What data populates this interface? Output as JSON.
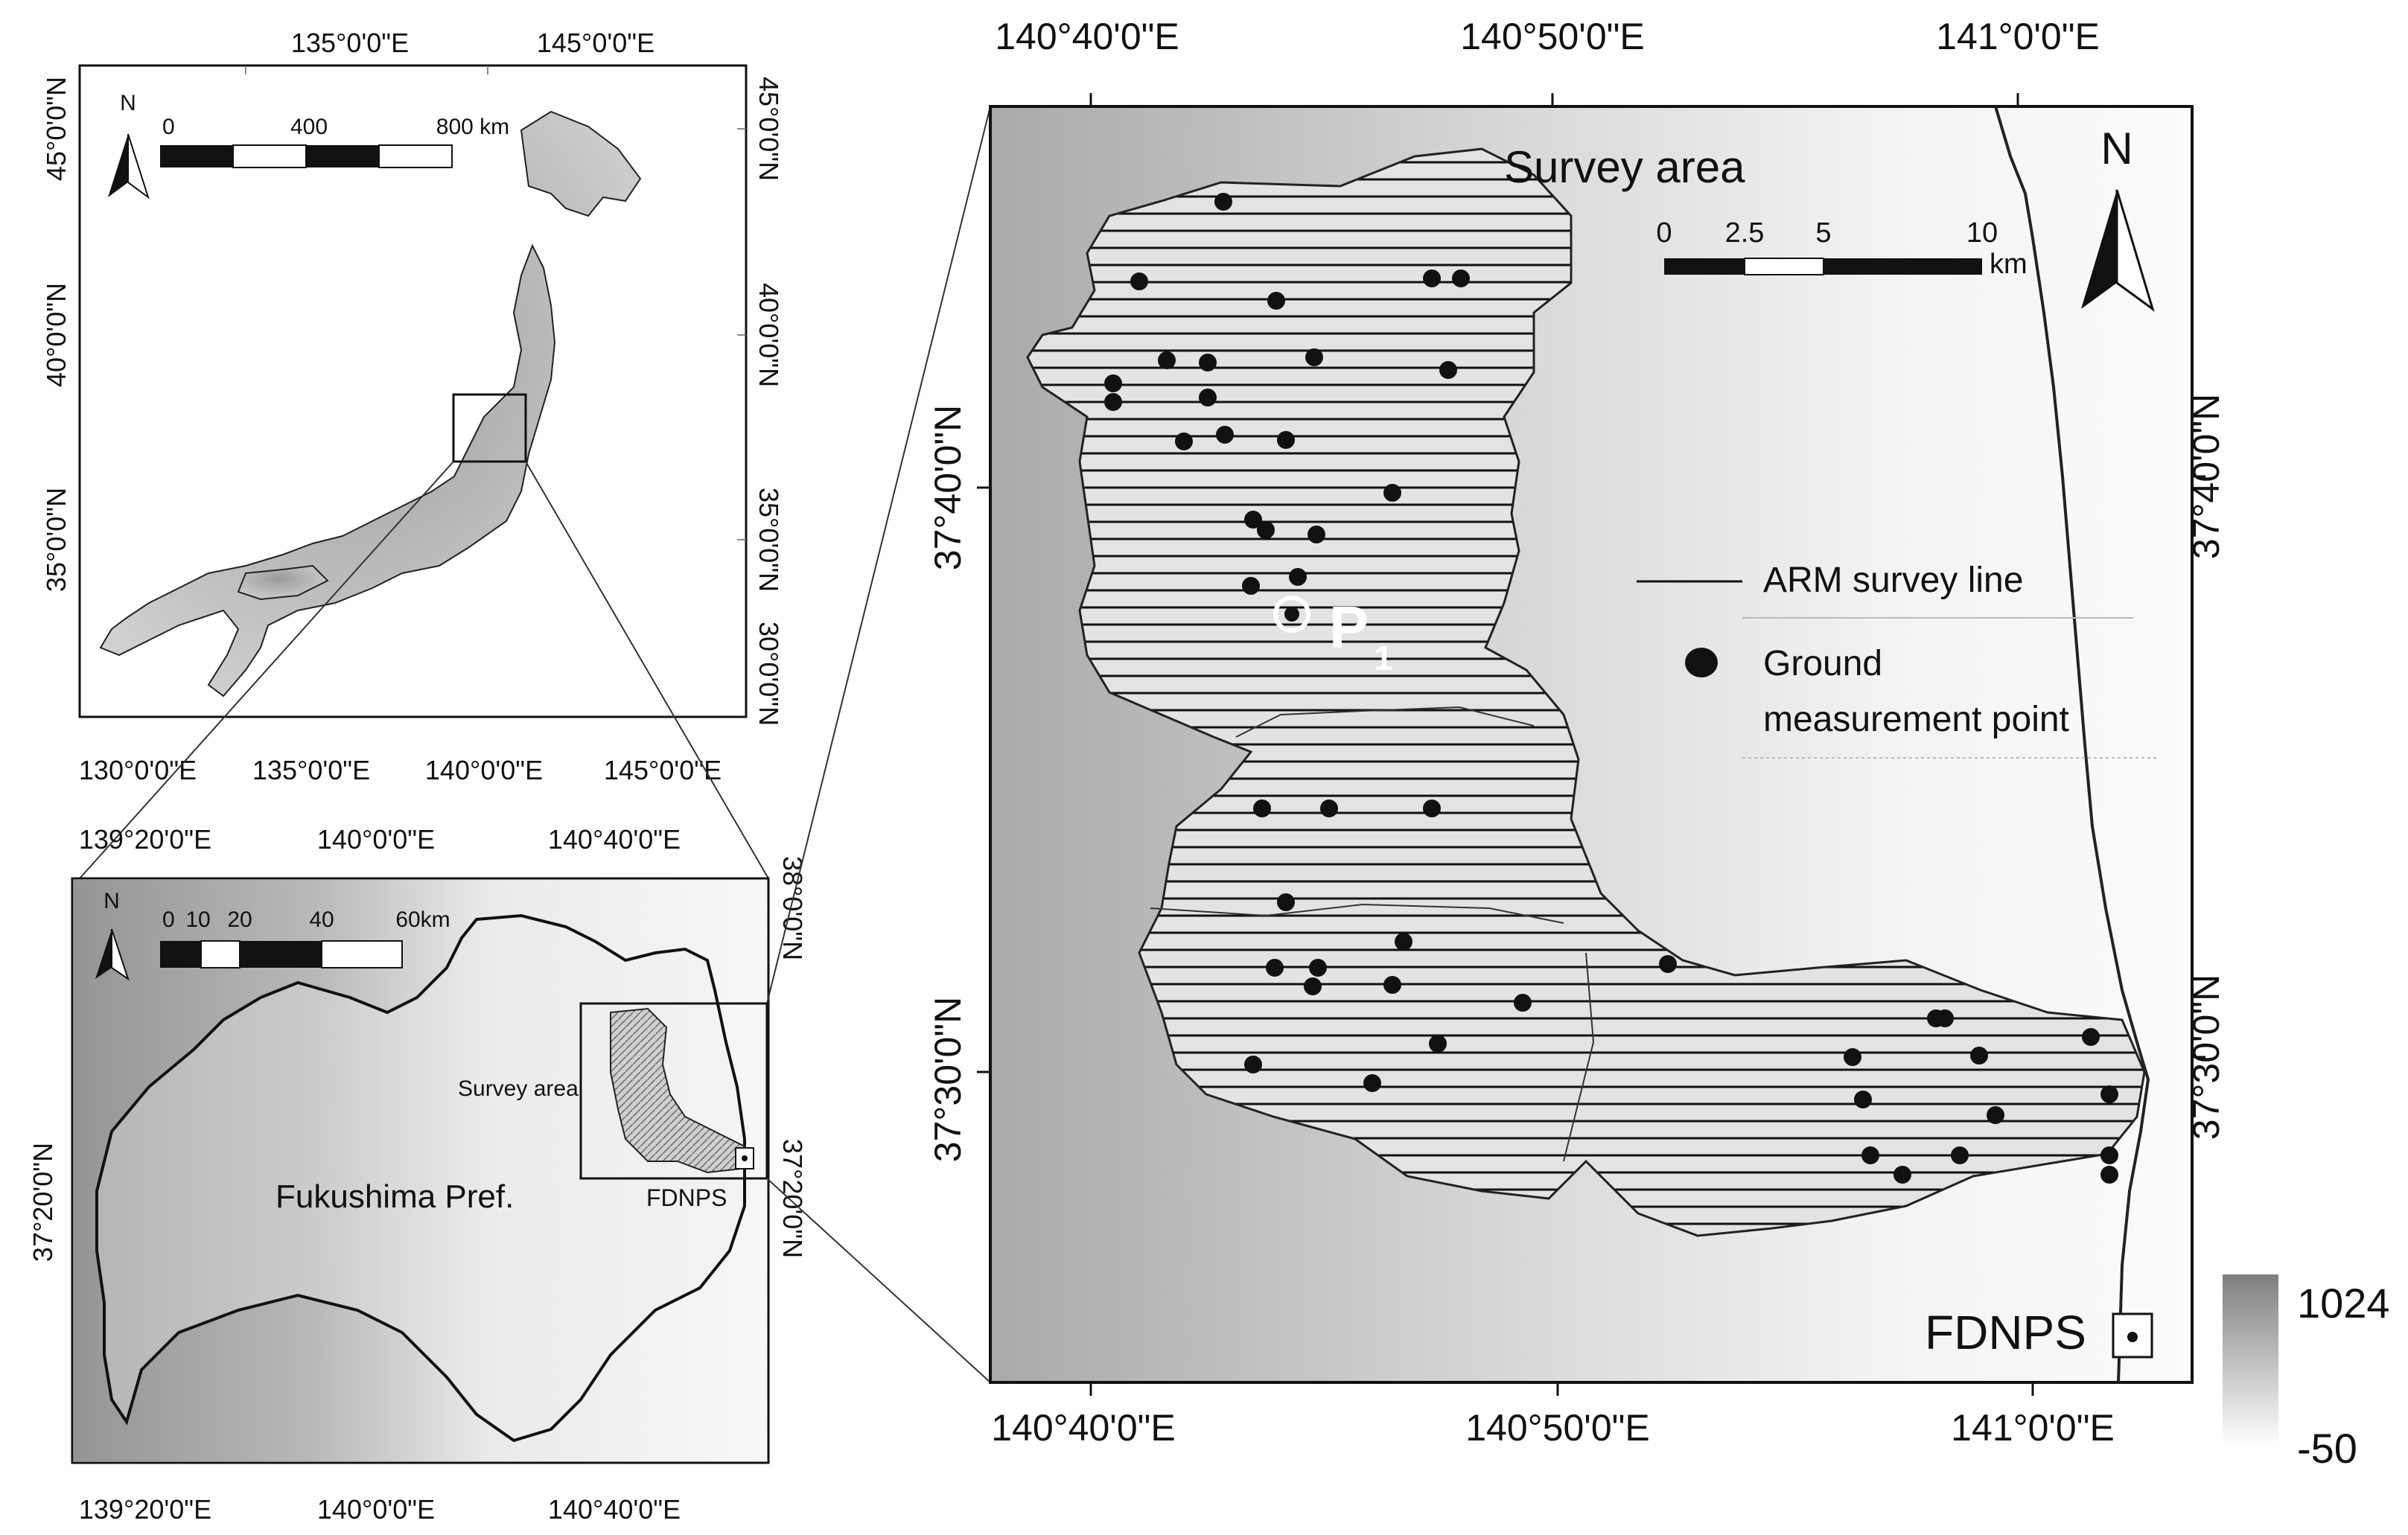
{
  "japan_map": {
    "top_ticks": [
      "135°0'0\"E",
      "145°0'0\"E"
    ],
    "bottom_ticks": [
      "130°0'0\"E",
      "135°0'0\"E",
      "140°0'0\"E",
      "145°0'0\"E"
    ],
    "left_ticks": [
      "45°0'0\"N",
      "40°0'0\"N",
      "35°0'0\"N"
    ],
    "right_ticks": [
      "45°0'0\"N",
      "40°0'0\"N",
      "35°0'0\"N",
      "30°0'0\"N"
    ],
    "north_label": "N",
    "scale_labels": [
      "0",
      "400",
      "800 km"
    ]
  },
  "fukushima_map": {
    "top_ticks": [
      "139°20'0\"E",
      "140°0'0\"E",
      "140°40'0\"E"
    ],
    "bottom_ticks": [
      "139°20'0\"E",
      "140°0'0\"E",
      "140°40'0\"E"
    ],
    "left_ticks": [
      "37°20'0\"N"
    ],
    "right_ticks": [
      "38°0'0\"N",
      "37°20'0\"N"
    ],
    "north_label": "N",
    "scale_labels": [
      "0",
      "10",
      "20",
      "40",
      "60km"
    ],
    "prefecture_label": "Fukushima Pref.",
    "survey_area_label": "Survey area",
    "fdnps_label": "FDNPS"
  },
  "survey_map": {
    "title": "Survey area",
    "top_ticks": [
      "140°40'0\"E",
      "140°50'0\"E",
      "141°0'0\"E"
    ],
    "bottom_ticks": [
      "140°40'0\"E",
      "140°50'0\"E",
      "141°0'0\"E"
    ],
    "left_ticks": [
      "37°40'0\"N",
      "37°30'0\"N"
    ],
    "right_ticks": [
      "37°40'0\"N",
      "37°30'0\"N"
    ],
    "north_label": "N",
    "scale_labels": [
      "0",
      "2.5",
      "5",
      "10"
    ],
    "scale_unit": "km",
    "point_label": "P",
    "point_subscript": "1",
    "fdnps_label": "FDNPS",
    "legend": {
      "line_label": "ARM survey line",
      "point_label_1": "Ground",
      "point_label_2": "measurement point"
    }
  },
  "elevation_legend": {
    "max": "1024",
    "min": "-50"
  },
  "colors": {
    "frame": "#111111",
    "terrain_dark": "#8a8a8a",
    "terrain_light": "#f4f4f4",
    "survey_fill": "#d3d3d3"
  }
}
